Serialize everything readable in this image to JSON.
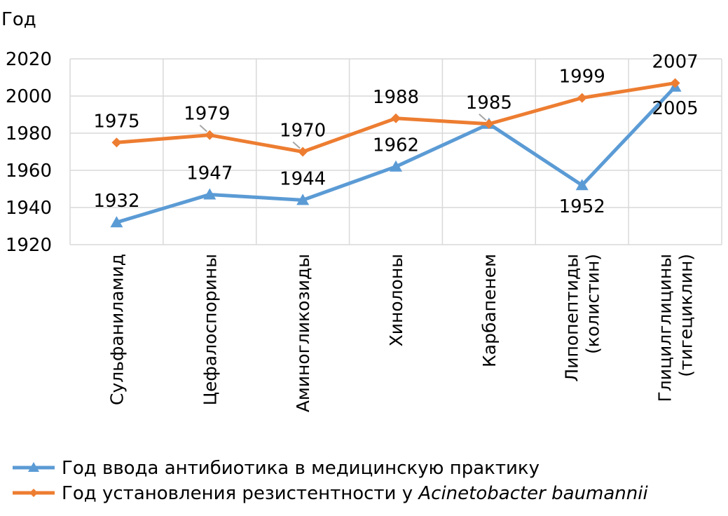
{
  "chart_data": {
    "type": "line",
    "ylabel": "Год",
    "ylim": [
      1920,
      2020
    ],
    "yticks": [
      1920,
      1940,
      1960,
      1980,
      2000,
      2020
    ],
    "grid": true,
    "legend_position": "bottom",
    "categories": [
      [
        "Сульфаниламид"
      ],
      [
        "Цефалоспорины"
      ],
      [
        "Аминогликозиды"
      ],
      [
        "Хинолоны"
      ],
      [
        "Карбапенем"
      ],
      [
        "Липопептиды",
        "(колистин)"
      ],
      [
        "Глицилглицины",
        "(тигециклин)"
      ]
    ],
    "series": [
      {
        "name": "Год ввода антибиотика в медицинскую практику",
        "color": "#5B9BD5",
        "marker": "triangle",
        "values": [
          1932,
          1947,
          1944,
          1962,
          1985,
          1952,
          2005
        ],
        "labels": [
          "1932",
          "1947",
          "1944",
          "1962",
          "",
          "1952",
          "2005"
        ]
      },
      {
        "name_prefix": "Год установления резистентности у ",
        "name_italic": "Acinetobacter baumannii",
        "color": "#ED7D31",
        "marker": "diamond",
        "values": [
          1975,
          1979,
          1970,
          1988,
          1985,
          1999,
          2007
        ],
        "labels": [
          "1975",
          "1979",
          "1970",
          "1988",
          "1985",
          "1999",
          "2007"
        ]
      }
    ]
  }
}
